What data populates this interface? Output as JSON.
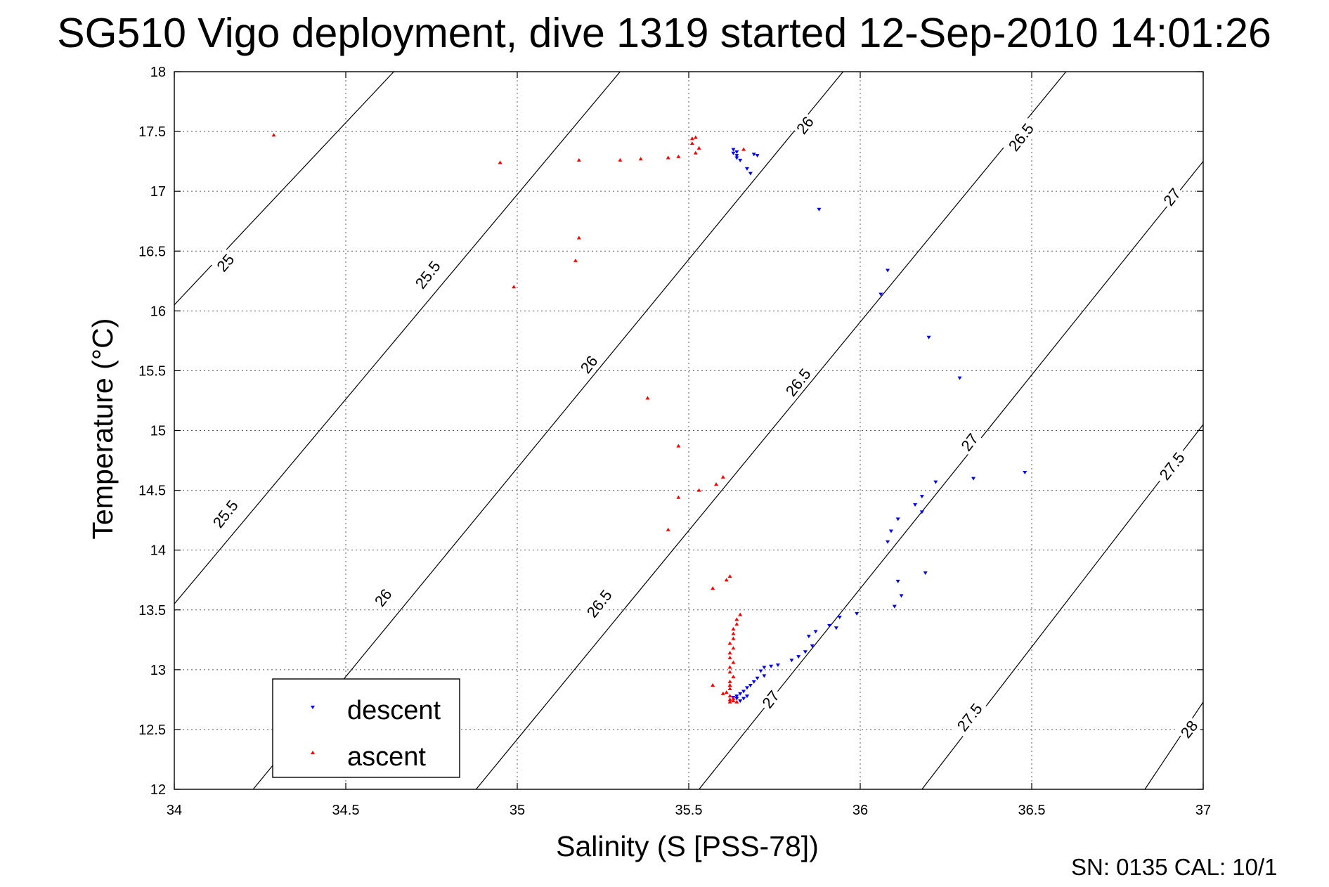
{
  "title": "SG510 Vigo deployment, dive 1319 started 12-Sep-2010 14:01:26",
  "footer": "SN: 0135  CAL: 10/1",
  "chart_data": {
    "type": "scatter",
    "xlabel": "Salinity (S [PSS-78])",
    "ylabel": "Temperature (°C)",
    "xlim": [
      34,
      37
    ],
    "ylim": [
      12,
      18
    ],
    "xticks": [
      "34",
      "34.5",
      "35",
      "35.5",
      "36",
      "36.5",
      "37"
    ],
    "yticks": [
      "12",
      "12.5",
      "13",
      "13.5",
      "14",
      "14.5",
      "15",
      "15.5",
      "16",
      "16.5",
      "17",
      "17.5",
      "18"
    ],
    "grid": true,
    "legend_position": "bottom-left",
    "colors": {
      "descent": "#0000ff",
      "ascent": "#ff0000",
      "contour": "#000000"
    },
    "contours": [
      {
        "label": "25",
        "lines": [
          [
            [
              34.0,
              16.05
            ],
            [
              34.64,
              18.0
            ]
          ]
        ]
      },
      {
        "label": "25.5",
        "lines": [
          [
            [
              34.0,
              13.55
            ],
            [
              35.3,
              18.0
            ]
          ]
        ]
      },
      {
        "label": "26",
        "lines": [
          [
            [
              34.23,
              12.0
            ],
            [
              35.95,
              18.0
            ]
          ]
        ]
      },
      {
        "label": "26.5",
        "lines": [
          [
            [
              34.88,
              12.0
            ],
            [
              36.6,
              18.0
            ]
          ]
        ]
      },
      {
        "label": "27",
        "lines": [
          [
            [
              35.53,
              12.0
            ],
            [
              37.0,
              17.25
            ]
          ]
        ]
      },
      {
        "label": "27.5",
        "lines": [
          [
            [
              36.18,
              12.0
            ],
            [
              37.0,
              15.05
            ]
          ]
        ]
      },
      {
        "label": "28",
        "lines": [
          [
            [
              36.83,
              12.0
            ],
            [
              37.0,
              12.73
            ]
          ]
        ]
      }
    ],
    "contour_labels": [
      {
        "text": "25",
        "x": 34.15,
        "y": 16.4,
        "angle": -49
      },
      {
        "text": "25.5",
        "x": 34.74,
        "y": 16.3,
        "angle": -52
      },
      {
        "text": "26",
        "x": 35.84,
        "y": 17.55,
        "angle": -52
      },
      {
        "text": "26.5",
        "x": 36.47,
        "y": 17.45,
        "angle": -52
      },
      {
        "text": "27",
        "x": 36.91,
        "y": 16.95,
        "angle": -52
      },
      {
        "text": "26",
        "x": 35.21,
        "y": 15.55,
        "angle": -52
      },
      {
        "text": "26.5",
        "x": 35.82,
        "y": 15.4,
        "angle": -52
      },
      {
        "text": "27",
        "x": 36.32,
        "y": 14.9,
        "angle": -52
      },
      {
        "text": "27.5",
        "x": 36.91,
        "y": 14.7,
        "angle": -52
      },
      {
        "text": "25.5",
        "x": 34.15,
        "y": 14.3,
        "angle": -52
      },
      {
        "text": "26",
        "x": 34.61,
        "y": 13.6,
        "angle": -52
      },
      {
        "text": "26.5",
        "x": 35.24,
        "y": 13.55,
        "angle": -52
      },
      {
        "text": "27",
        "x": 35.74,
        "y": 12.75,
        "angle": -52
      },
      {
        "text": "27.5",
        "x": 36.32,
        "y": 12.6,
        "angle": -52
      },
      {
        "text": "28",
        "x": 36.96,
        "y": 12.5,
        "angle": -52
      }
    ],
    "series": [
      {
        "name": "descent",
        "marker": "down-triangle",
        "points": [
          [
            35.63,
            17.35
          ],
          [
            35.63,
            17.32
          ],
          [
            35.64,
            17.33
          ],
          [
            35.64,
            17.3
          ],
          [
            35.64,
            17.28
          ],
          [
            35.65,
            17.26
          ],
          [
            35.67,
            17.19
          ],
          [
            35.68,
            17.15
          ],
          [
            35.69,
            17.31
          ],
          [
            35.7,
            17.3
          ],
          [
            35.88,
            16.85
          ],
          [
            36.08,
            16.34
          ],
          [
            36.06,
            16.14
          ],
          [
            36.2,
            15.78
          ],
          [
            36.29,
            15.44
          ],
          [
            36.48,
            14.65
          ],
          [
            36.33,
            14.6
          ],
          [
            36.22,
            14.57
          ],
          [
            36.18,
            14.45
          ],
          [
            36.16,
            14.38
          ],
          [
            36.18,
            14.32
          ],
          [
            36.11,
            14.26
          ],
          [
            36.09,
            14.16
          ],
          [
            36.08,
            14.07
          ],
          [
            36.19,
            13.81
          ],
          [
            36.11,
            13.74
          ],
          [
            36.12,
            13.62
          ],
          [
            36.1,
            13.53
          ],
          [
            35.99,
            13.47
          ],
          [
            35.94,
            13.44
          ],
          [
            35.91,
            13.37
          ],
          [
            35.93,
            13.35
          ],
          [
            35.87,
            13.32
          ],
          [
            35.85,
            13.28
          ],
          [
            35.86,
            13.2
          ],
          [
            35.84,
            13.15
          ],
          [
            35.82,
            13.11
          ],
          [
            35.8,
            13.08
          ],
          [
            35.76,
            13.04
          ],
          [
            35.74,
            13.03
          ],
          [
            35.72,
            13.02
          ],
          [
            35.71,
            12.99
          ],
          [
            35.72,
            12.95
          ],
          [
            35.7,
            12.93
          ],
          [
            35.69,
            12.9
          ],
          [
            35.68,
            12.87
          ],
          [
            35.67,
            12.85
          ],
          [
            35.66,
            12.82
          ],
          [
            35.65,
            12.8
          ],
          [
            35.64,
            12.78
          ],
          [
            35.64,
            12.76
          ],
          [
            35.65,
            12.74
          ],
          [
            35.66,
            12.76
          ],
          [
            35.67,
            12.78
          ],
          [
            35.63,
            12.77
          ]
        ]
      },
      {
        "name": "ascent",
        "marker": "up-triangle",
        "points": [
          [
            34.29,
            17.47
          ],
          [
            34.95,
            17.24
          ],
          [
            35.18,
            17.26
          ],
          [
            35.3,
            17.26
          ],
          [
            35.36,
            17.27
          ],
          [
            35.44,
            17.28
          ],
          [
            35.47,
            17.29
          ],
          [
            35.51,
            17.44
          ],
          [
            35.52,
            17.45
          ],
          [
            35.51,
            17.4
          ],
          [
            35.53,
            17.36
          ],
          [
            35.52,
            17.32
          ],
          [
            35.66,
            17.35
          ],
          [
            35.17,
            16.42
          ],
          [
            35.18,
            16.61
          ],
          [
            34.99,
            16.2
          ],
          [
            35.38,
            15.27
          ],
          [
            35.47,
            14.87
          ],
          [
            35.6,
            14.61
          ],
          [
            35.58,
            14.55
          ],
          [
            35.53,
            14.5
          ],
          [
            35.47,
            14.44
          ],
          [
            35.44,
            14.17
          ],
          [
            35.61,
            13.75
          ],
          [
            35.62,
            13.78
          ],
          [
            35.57,
            13.68
          ],
          [
            35.65,
            13.46
          ],
          [
            35.64,
            13.42
          ],
          [
            35.64,
            13.38
          ],
          [
            35.63,
            13.34
          ],
          [
            35.63,
            13.3
          ],
          [
            35.63,
            13.26
          ],
          [
            35.62,
            13.22
          ],
          [
            35.63,
            13.18
          ],
          [
            35.62,
            13.14
          ],
          [
            35.62,
            13.1
          ],
          [
            35.63,
            13.06
          ],
          [
            35.62,
            13.02
          ],
          [
            35.62,
            12.98
          ],
          [
            35.63,
            12.94
          ],
          [
            35.62,
            12.9
          ],
          [
            35.62,
            12.87
          ],
          [
            35.62,
            12.84
          ],
          [
            35.61,
            12.81
          ],
          [
            35.62,
            12.78
          ],
          [
            35.63,
            12.76
          ],
          [
            35.62,
            12.75
          ],
          [
            35.63,
            12.74
          ],
          [
            35.62,
            12.73
          ],
          [
            35.64,
            12.73
          ],
          [
            35.57,
            12.87
          ],
          [
            35.6,
            12.8
          ]
        ]
      }
    ]
  }
}
